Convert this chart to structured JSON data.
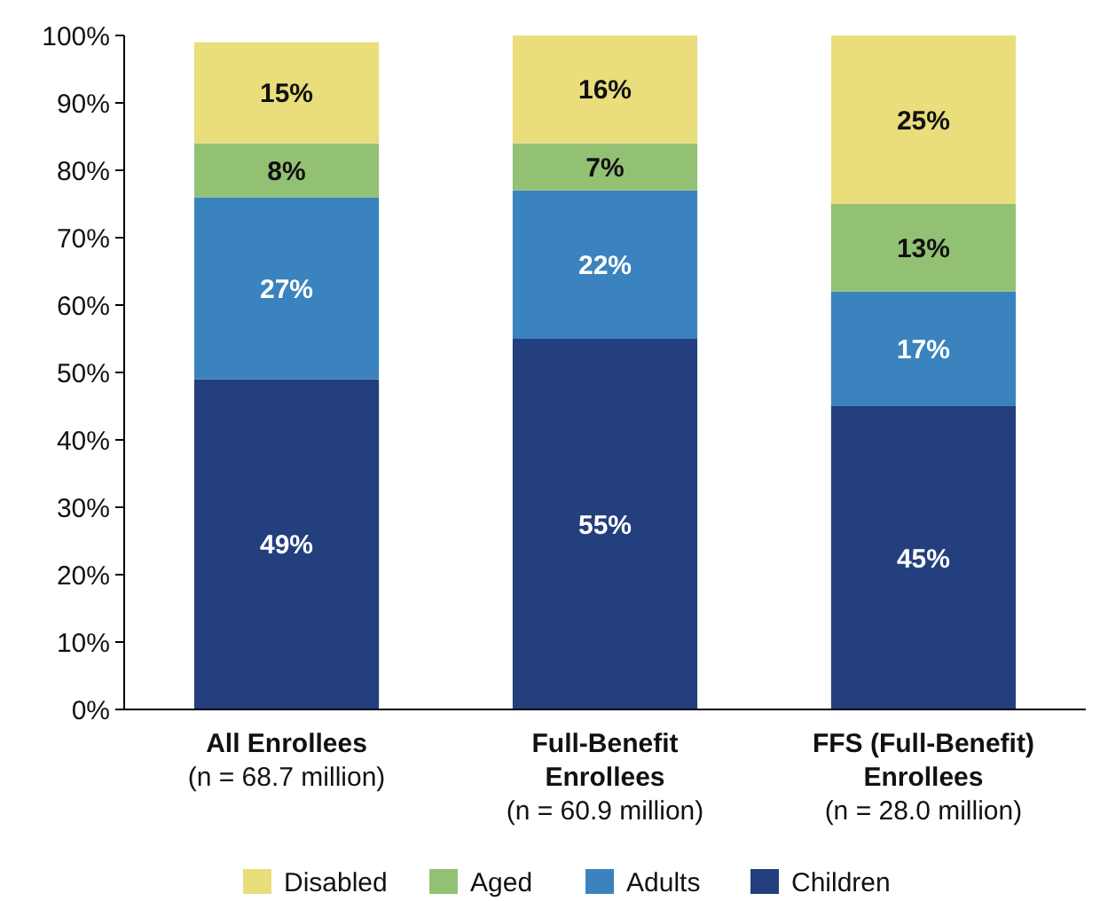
{
  "chart_data": {
    "type": "bar",
    "stacked": true,
    "legend": "bottom",
    "grid": false,
    "categories": [
      "All Enrollees\n(n = 68.7 million)",
      "Full-Benefit\nEnrollees\n(n = 60.9 million)",
      "FFS (Full-Benefit)\nEnrollees\n(n = 28.0 million)"
    ],
    "series": [
      {
        "name": "Children",
        "color": "#233f7d",
        "values": [
          49,
          55,
          45
        ],
        "value_labels": [
          "49%",
          "55%",
          "45%"
        ]
      },
      {
        "name": "Adults",
        "color": "#3a83be",
        "values": [
          27,
          22,
          17
        ],
        "value_labels": [
          "27%",
          "22%",
          "17%"
        ]
      },
      {
        "name": "Aged",
        "color": "#93c174",
        "values": [
          8,
          7,
          13
        ],
        "value_labels": [
          "8%",
          "7%",
          "13%"
        ]
      },
      {
        "name": "Disabled",
        "color": "#e9dd7c",
        "values": [
          15,
          16,
          25
        ],
        "value_labels": [
          "15%",
          "16%",
          "25%"
        ]
      }
    ],
    "ylim": [
      0,
      100
    ],
    "yticks": [
      {
        "value": 0,
        "label": "0%"
      },
      {
        "value": 10,
        "label": "10%"
      },
      {
        "value": 20,
        "label": "20%"
      },
      {
        "value": 30,
        "label": "30%"
      },
      {
        "value": 40,
        "label": "40%"
      },
      {
        "value": 50,
        "label": "50%"
      },
      {
        "value": 60,
        "label": "60%"
      },
      {
        "value": 70,
        "label": "70%"
      },
      {
        "value": 80,
        "label": "80%"
      },
      {
        "value": 90,
        "label": "90%"
      },
      {
        "value": 100,
        "label": "100%"
      }
    ]
  }
}
